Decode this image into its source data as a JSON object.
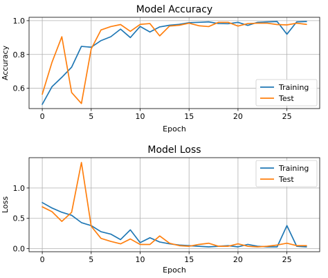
{
  "chart_data": [
    {
      "type": "line",
      "title": "Model Accuracy",
      "xlabel": "Epoch",
      "ylabel": "Accuracy",
      "xlim": [
        -1.35,
        28.35
      ],
      "ylim": [
        0.48,
        1.02
      ],
      "xticks": [
        0,
        5,
        10,
        15,
        20,
        25
      ],
      "yticks": [
        0.6,
        0.8,
        1.0
      ],
      "ytick_labels": [
        "0.6",
        "0.8",
        "1.0"
      ],
      "grid": true,
      "legend_position": "bottom-right",
      "x": [
        0,
        1,
        2,
        3,
        4,
        5,
        6,
        7,
        8,
        9,
        10,
        11,
        12,
        13,
        14,
        15,
        16,
        17,
        18,
        19,
        20,
        21,
        22,
        23,
        24,
        25,
        26,
        27
      ],
      "series": [
        {
          "name": "Training",
          "color": "#1f77b4",
          "values": [
            0.505,
            0.61,
            0.665,
            0.725,
            0.848,
            0.843,
            0.882,
            0.905,
            0.95,
            0.9,
            0.966,
            0.933,
            0.963,
            0.973,
            0.978,
            0.988,
            0.99,
            0.993,
            0.983,
            0.982,
            0.99,
            0.972,
            0.99,
            0.993,
            0.995,
            0.92,
            0.993,
            0.995
          ]
        },
        {
          "name": "Test",
          "color": "#ff7f0e",
          "values": [
            0.565,
            0.755,
            0.905,
            0.575,
            0.51,
            0.833,
            0.945,
            0.965,
            0.977,
            0.937,
            0.978,
            0.983,
            0.91,
            0.968,
            0.973,
            0.985,
            0.97,
            0.965,
            0.99,
            0.99,
            0.968,
            0.983,
            0.985,
            0.985,
            0.977,
            0.975,
            0.985,
            0.978
          ]
        }
      ]
    },
    {
      "type": "line",
      "title": "Model Loss",
      "xlabel": "Epoch",
      "ylabel": "Loss",
      "xlim": [
        -1.35,
        28.35
      ],
      "ylim": [
        -0.05,
        1.5
      ],
      "xticks": [
        0,
        5,
        10,
        15,
        20,
        25
      ],
      "yticks": [
        0.0,
        0.5,
        1.0
      ],
      "ytick_labels": [
        "0.0",
        "0.5",
        "1.0"
      ],
      "grid": true,
      "legend_position": "top-right",
      "x": [
        0,
        1,
        2,
        3,
        4,
        5,
        6,
        7,
        8,
        9,
        10,
        11,
        12,
        13,
        14,
        15,
        16,
        17,
        18,
        19,
        20,
        21,
        22,
        23,
        24,
        25,
        26,
        27
      ],
      "series": [
        {
          "name": "Training",
          "color": "#1f77b4",
          "values": [
            0.76,
            0.67,
            0.6,
            0.55,
            0.43,
            0.38,
            0.28,
            0.24,
            0.15,
            0.31,
            0.1,
            0.18,
            0.11,
            0.08,
            0.06,
            0.05,
            0.04,
            0.03,
            0.04,
            0.05,
            0.03,
            0.07,
            0.04,
            0.03,
            0.03,
            0.38,
            0.04,
            0.03
          ]
        },
        {
          "name": "Test",
          "color": "#ff7f0e",
          "values": [
            0.69,
            0.61,
            0.45,
            0.6,
            1.42,
            0.37,
            0.17,
            0.12,
            0.08,
            0.16,
            0.07,
            0.07,
            0.21,
            0.09,
            0.05,
            0.04,
            0.07,
            0.09,
            0.04,
            0.04,
            0.08,
            0.04,
            0.03,
            0.04,
            0.06,
            0.09,
            0.05,
            0.05
          ]
        }
      ]
    }
  ]
}
